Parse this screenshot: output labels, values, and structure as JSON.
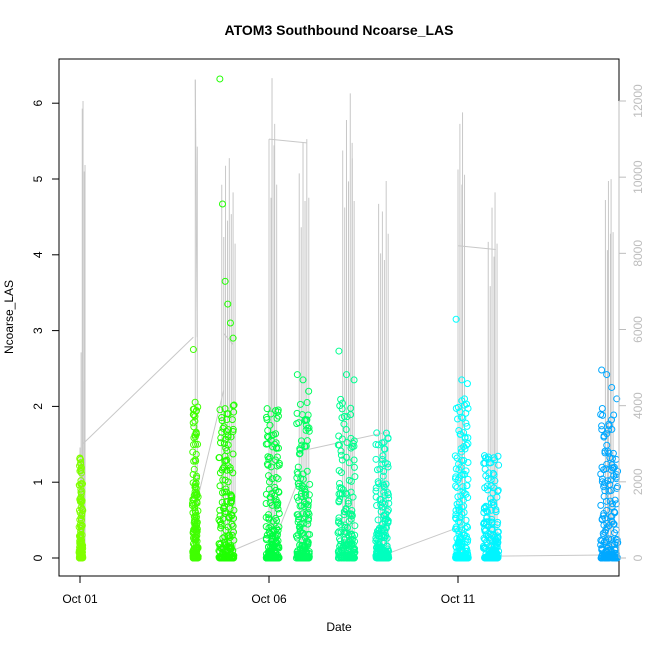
{
  "chart_data": {
    "type": "scatter",
    "title": "ATOM3 Southbound Ncoarse_LAS",
    "xlabel": "Date",
    "ylabel": "Ncoarse_LAS",
    "x_ticks": [
      "Oct 01",
      "Oct 06",
      "Oct 11"
    ],
    "y_ticks": [
      0,
      1,
      2,
      3,
      4,
      5,
      6
    ],
    "y2_ticks": [
      0,
      2000,
      4000,
      6000,
      8000,
      10000,
      12000
    ],
    "xlim": [
      0,
      14.5
    ],
    "ylim": [
      0,
      6.4
    ],
    "y2lim": [
      0,
      12900
    ],
    "grid": false,
    "legend": "none",
    "colors": {
      "secondary_line": "#c8c8c8",
      "secondary_axis": "#bdbdbd",
      "point_cluster_colors": [
        "#80ff00",
        "#40ff00",
        "#00ff40",
        "#00ff60",
        "#00ff9f",
        "#00ffbf",
        "#00ffff",
        "#00f0ff",
        "#00a0ff"
      ]
    },
    "series": [
      {
        "name": "",
        "type": "points",
        "clusters": [
          {
            "x_start": 0.0,
            "x_end": 0.05,
            "y_max": 1.32,
            "color": "#80ff00",
            "outliers": [
              1.32,
              1.3,
              0.98,
              0.88
            ]
          },
          {
            "x_start": 3.0,
            "x_end": 3.1,
            "y_max": 2.75,
            "color": "#40ff00",
            "outliers": [
              2.75,
              0.42,
              0.35
            ]
          },
          {
            "x_start": 3.7,
            "x_end": 4.05,
            "y_max": 6.32,
            "color": "#20ff00",
            "outliers": [
              6.32,
              4.67,
              3.65,
              3.35,
              3.1,
              2.9
            ]
          },
          {
            "x_start": 4.95,
            "x_end": 5.25,
            "y_max": 1.97,
            "color": "#00ff40",
            "outliers": [
              1.97,
              1.9,
              1.5,
              1.45
            ]
          },
          {
            "x_start": 5.75,
            "x_end": 6.05,
            "y_max": 2.42,
            "color": "#00ff60",
            "outliers": [
              2.42,
              2.35,
              2.2
            ]
          },
          {
            "x_start": 6.85,
            "x_end": 7.25,
            "y_max": 2.73,
            "color": "#00ff90",
            "outliers": [
              2.73,
              2.42,
              2.35
            ]
          },
          {
            "x_start": 7.85,
            "x_end": 8.15,
            "y_max": 1.65,
            "color": "#00ffbf",
            "outliers": [
              1.65,
              1.3,
              1.2
            ]
          },
          {
            "x_start": 9.95,
            "x_end": 10.25,
            "y_max": 3.15,
            "color": "#00ffff",
            "outliers": [
              3.15,
              2.35,
              2.3
            ]
          },
          {
            "x_start": 10.7,
            "x_end": 11.05,
            "y_max": 1.35,
            "color": "#00f4ff",
            "outliers": [
              1.35,
              0.95,
              0.88
            ]
          },
          {
            "x_start": 13.8,
            "x_end": 14.2,
            "y_max": 2.48,
            "color": "#00a8ff",
            "outliers": [
              2.48,
              2.42,
              2.25,
              2.1
            ]
          }
        ]
      },
      {
        "name": "",
        "type": "line",
        "axis": "right",
        "spikes": [
          {
            "x": 0.0,
            "y": 2900
          },
          {
            "x": 0.03,
            "y": 5400
          },
          {
            "x": 0.06,
            "y": 11800
          },
          {
            "x": 0.08,
            "y": 12000
          },
          {
            "x": 3.05,
            "y": 12560
          },
          {
            "x": 3.75,
            "y": 9800
          },
          {
            "x": 3.85,
            "y": 10300
          },
          {
            "x": 3.95,
            "y": 10500
          },
          {
            "x": 4.05,
            "y": 9600
          },
          {
            "x": 5.0,
            "y": 11000
          },
          {
            "x": 5.08,
            "y": 12600
          },
          {
            "x": 5.15,
            "y": 11400
          },
          {
            "x": 5.8,
            "y": 10100
          },
          {
            "x": 5.9,
            "y": 10900
          },
          {
            "x": 6.0,
            "y": 11000
          },
          {
            "x": 6.95,
            "y": 10700
          },
          {
            "x": 7.05,
            "y": 11500
          },
          {
            "x": 7.15,
            "y": 12200
          },
          {
            "x": 7.2,
            "y": 10900
          },
          {
            "x": 7.9,
            "y": 9300
          },
          {
            "x": 8.0,
            "y": 9100
          },
          {
            "x": 8.1,
            "y": 9900
          },
          {
            "x": 10.0,
            "y": 10200
          },
          {
            "x": 10.05,
            "y": 11400
          },
          {
            "x": 10.12,
            "y": 11700
          },
          {
            "x": 10.8,
            "y": 8300
          },
          {
            "x": 10.9,
            "y": 9200
          },
          {
            "x": 10.98,
            "y": 9600
          },
          {
            "x": 13.9,
            "y": 9400
          },
          {
            "x": 13.98,
            "y": 9900
          },
          {
            "x": 14.05,
            "y": 9950
          }
        ],
        "connectors": [
          {
            "x": [
              0.08,
              3.0
            ],
            "y": [
              3000,
              5800
            ]
          },
          {
            "x": [
              3.05,
              3.1
            ],
            "y": [
              12560,
              5800
            ]
          },
          {
            "x": [
              3.05,
              3.8
            ],
            "y": [
              1300,
              4400
            ]
          },
          {
            "x": [
              3.8,
              4.05
            ],
            "y": [
              5900,
              5600
            ]
          },
          {
            "x": [
              4.05,
              5.0
            ],
            "y": [
              200,
              600
            ]
          },
          {
            "x": [
              5.0,
              6.0
            ],
            "y": [
              11000,
              10900
            ]
          },
          {
            "x": [
              5.0,
              5.8
            ],
            "y": [
              100,
              2100
            ]
          },
          {
            "x": [
              5.8,
              8.1
            ],
            "y": [
              2800,
              3300
            ]
          },
          {
            "x": [
              8.1,
              10.0
            ],
            "y": [
              100,
              800
            ]
          },
          {
            "x": [
              10.0,
              11.0
            ],
            "y": [
              8200,
              8100
            ]
          },
          {
            "x": [
              11.0,
              13.9
            ],
            "y": [
              50,
              80
            ]
          }
        ]
      }
    ]
  }
}
